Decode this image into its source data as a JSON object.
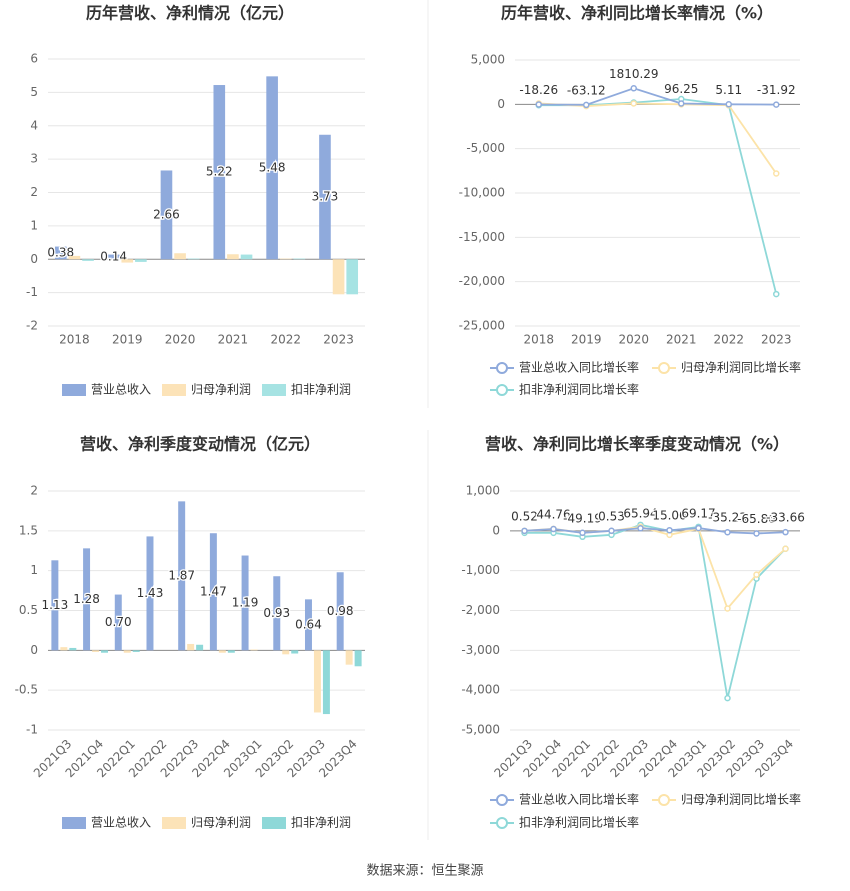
{
  "chart_data": [
    {
      "type": "bar",
      "title": "历年营收、净利情况（亿元）",
      "categories": [
        "2018",
        "2019",
        "2020",
        "2021",
        "2022",
        "2023"
      ],
      "series": [
        {
          "name": "营业总收入",
          "color": "#8faadc",
          "values": [
            0.38,
            0.14,
            2.66,
            5.22,
            5.48,
            3.73
          ]
        },
        {
          "name": "归母净利润",
          "color": "#fce3b8",
          "values": [
            0.1,
            -0.1,
            0.18,
            0.15,
            0.02,
            -1.05
          ]
        },
        {
          "name": "扣非净利润",
          "color": "#a6e3e3",
          "values": [
            -0.05,
            -0.08,
            0.02,
            0.14,
            0.02,
            -1.05
          ]
        }
      ],
      "ylim": [
        -2,
        6
      ],
      "yticks": [
        -2,
        -1,
        0,
        1,
        2,
        3,
        4,
        5,
        6
      ],
      "grid": true,
      "legend": "bottom"
    },
    {
      "type": "line",
      "title": "历年营收、净利同比增长率情况（%）",
      "categories": [
        "2018",
        "2019",
        "2020",
        "2021",
        "2022",
        "2023"
      ],
      "series": [
        {
          "name": "营业总收入同比增长率",
          "color": "#8faadc",
          "values": [
            -18.26,
            -63.12,
            1810.29,
            96.25,
            5.11,
            -31.92
          ]
        },
        {
          "name": "归母净利润同比增长率",
          "color": "#fce3a8",
          "values": [
            100,
            -200,
            100,
            0,
            -100,
            -7800
          ]
        },
        {
          "name": "扣非净利润同比增长率",
          "color": "#8ed8d8",
          "values": [
            -100,
            -100,
            200,
            600,
            -100,
            -21400
          ]
        }
      ],
      "ylim": [
        -25000,
        5000
      ],
      "yticks": [
        {
          "value": -25000,
          "label": "-25,000"
        },
        {
          "value": -20000,
          "label": "-20,000"
        },
        {
          "value": -15000,
          "label": "-15,000"
        },
        {
          "value": -10000,
          "label": "-10,000"
        },
        {
          "value": -5000,
          "label": "-5,000"
        },
        0,
        {
          "value": 5000,
          "label": "5,000"
        }
      ],
      "grid": true,
      "legend": "bottom"
    },
    {
      "type": "bar",
      "title": "营收、净利季度变动情况（亿元）",
      "categories": [
        "2021Q3",
        "2021Q4",
        "2022Q1",
        "2022Q2",
        "2022Q3",
        "2022Q4",
        "2023Q1",
        "2023Q2",
        "2023Q3",
        "2023Q4"
      ],
      "series": [
        {
          "name": "营业总收入",
          "color": "#8faadc",
          "values": [
            1.13,
            1.28,
            0.7,
            1.43,
            1.87,
            1.47,
            1.19,
            0.93,
            0.64,
            0.98
          ],
          "value_labels": [
            "1.13",
            "1.28",
            "0.70",
            "1.43",
            "1.87",
            "1.47",
            "1.19",
            "0.93",
            "0.64",
            "0.98"
          ]
        },
        {
          "name": "归母净利润",
          "color": "#fce3b8",
          "values": [
            0.04,
            -0.02,
            -0.03,
            0.0,
            0.08,
            -0.03,
            0.01,
            -0.05,
            -0.78,
            -0.18
          ]
        },
        {
          "name": "扣非净利润",
          "color": "#8ed8d8",
          "values": [
            0.03,
            -0.03,
            -0.02,
            0.0,
            0.07,
            -0.03,
            0.0,
            -0.04,
            -0.8,
            -0.2
          ]
        }
      ],
      "ylim": [
        -1,
        2
      ],
      "yticks": [
        -1,
        -0.5,
        0,
        0.5,
        1,
        1.5,
        2
      ],
      "grid": true,
      "legend": "bottom"
    },
    {
      "type": "line",
      "title": "营收、净利同比增长率季度变动情况（%）",
      "categories": [
        "2021Q3",
        "2021Q4",
        "2022Q1",
        "2022Q2",
        "2022Q3",
        "2022Q4",
        "2023Q1",
        "2023Q2",
        "2023Q3",
        "2023Q4"
      ],
      "series": [
        {
          "name": "营业总收入同比增长率",
          "color": "#8faadc",
          "values": [
            0.52,
            44.76,
            -49.19,
            0.53,
            65.94,
            15.06,
            69.17,
            -35.23,
            -65.86,
            -33.66
          ]
        },
        {
          "name": "归母净利润同比增长率",
          "color": "#fce3a8",
          "values": [
            0,
            50,
            -50,
            0,
            100,
            -100,
            50,
            -1950,
            -1100,
            -450
          ]
        },
        {
          "name": "扣非净利润同比增长率",
          "color": "#8ed8d8",
          "values": [
            -50,
            -50,
            -150,
            -100,
            150,
            0,
            100,
            -4200,
            -1200,
            -450
          ]
        }
      ],
      "ylim": [
        -5000,
        1000
      ],
      "yticks": [
        {
          "value": -5000,
          "label": "-5,000"
        },
        {
          "value": -4000,
          "label": "-4,000"
        },
        {
          "value": -3000,
          "label": "-3,000"
        },
        {
          "value": -2000,
          "label": "-2,000"
        },
        {
          "value": -1000,
          "label": "-1,000"
        },
        0,
        {
          "value": 1000,
          "label": "1,000"
        }
      ],
      "grid": true,
      "legend": "bottom"
    }
  ],
  "source": "数据来源：恒生聚源"
}
